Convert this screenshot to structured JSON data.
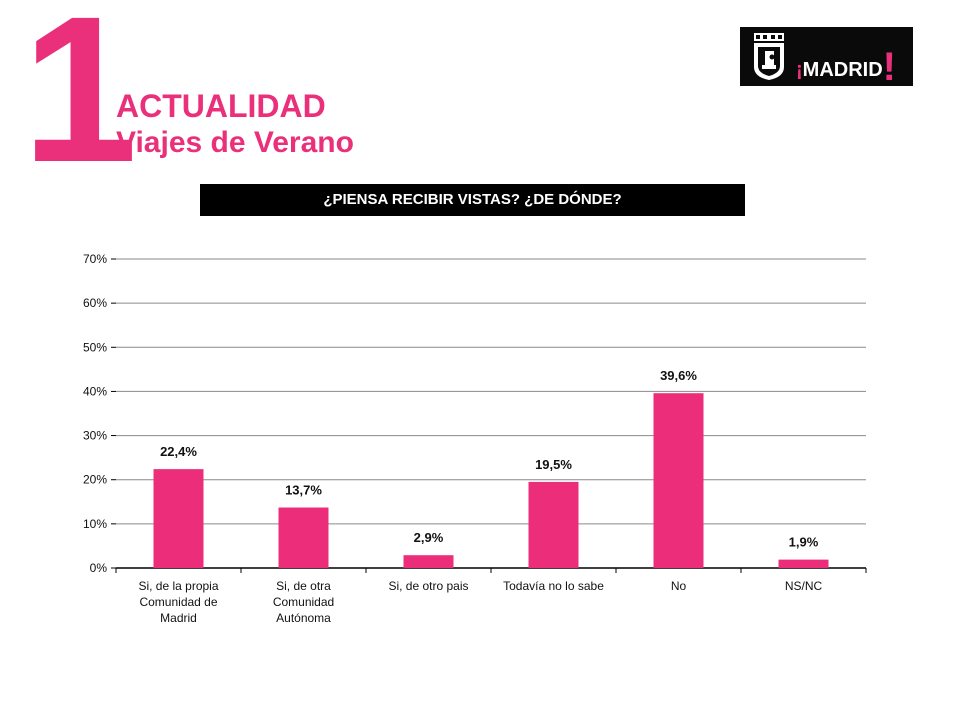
{
  "header": {
    "section_number": "1",
    "title": "ACTUALIDAD",
    "subtitle": "Viajes de Verano"
  },
  "logo": {
    "text_open": "¡",
    "text": "MADRID",
    "text_close": "!",
    "icon": "madrid-crest-icon"
  },
  "question": "¿PIENSA RECIBIR VISTAS? ¿DE DÓNDE?",
  "colors": {
    "accent": "#ea2f7b",
    "bar": "#ec2d7a",
    "grid": "#8a8a8a",
    "banner": "#000000"
  },
  "chart_data": {
    "type": "bar",
    "categories": [
      [
        "Si, de la propia",
        "Comunidad de",
        "Madrid"
      ],
      [
        "Si, de otra",
        "Comunidad",
        "Autónoma"
      ],
      [
        "Si, de otro pais"
      ],
      [
        "Todavía no lo sabe"
      ],
      [
        "No"
      ],
      [
        "NS/NC"
      ]
    ],
    "values": [
      22.4,
      13.7,
      2.9,
      19.5,
      39.6,
      1.9
    ],
    "value_labels": [
      "22,4%",
      "13,7%",
      "2,9%",
      "19,5%",
      "39,6%",
      "1,9%"
    ],
    "y_ticks": [
      0,
      10,
      20,
      30,
      40,
      50,
      60,
      70
    ],
    "y_tick_labels": [
      "0%",
      "10%",
      "20%",
      "30%",
      "40%",
      "50%",
      "60%",
      "70%"
    ],
    "ylim": [
      0,
      70
    ],
    "grid": true,
    "legend": false
  }
}
